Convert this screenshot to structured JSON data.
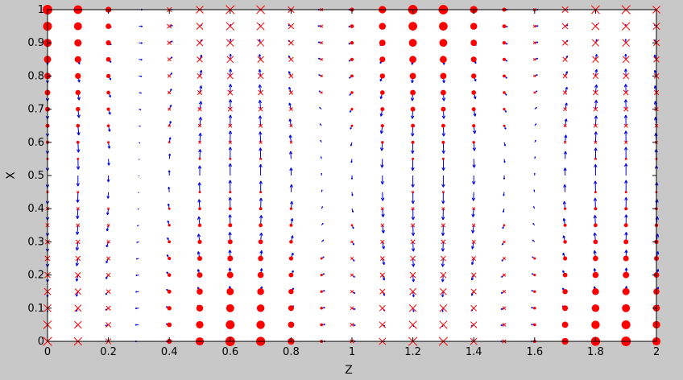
{
  "window": {
    "background": "#c8c8c8"
  },
  "chart_data": {
    "type": "scatter",
    "title": "",
    "xlabel": "Z",
    "ylabel": "X",
    "xlim": [
      0,
      2
    ],
    "ylim": [
      0,
      1
    ],
    "x_ticks": [
      "0",
      "0.2",
      "0.4",
      "0.6",
      "0.8",
      "1",
      "1.2",
      "1.4",
      "1.6",
      "1.8",
      "2"
    ],
    "y_ticks": [
      "0",
      "0.1",
      "0.2",
      "0.3",
      "0.4",
      "0.5",
      "0.6",
      "0.7",
      "0.8",
      "0.9",
      "1"
    ],
    "grid": false,
    "field": {
      "nz": 20,
      "nx": 20,
      "z_period": 1.25,
      "notes_visible": false
    },
    "colors": {
      "axes_background": "#ffffff",
      "arrow": "#0000dd",
      "marker": "#ff0000",
      "axis": "#000000"
    },
    "series": [
      {
        "marker": "dot",
        "color": "#ff0000"
      },
      {
        "marker": "x",
        "color": "#ff0000"
      },
      {
        "marker": "arrow",
        "color": "#0000dd"
      }
    ]
  }
}
